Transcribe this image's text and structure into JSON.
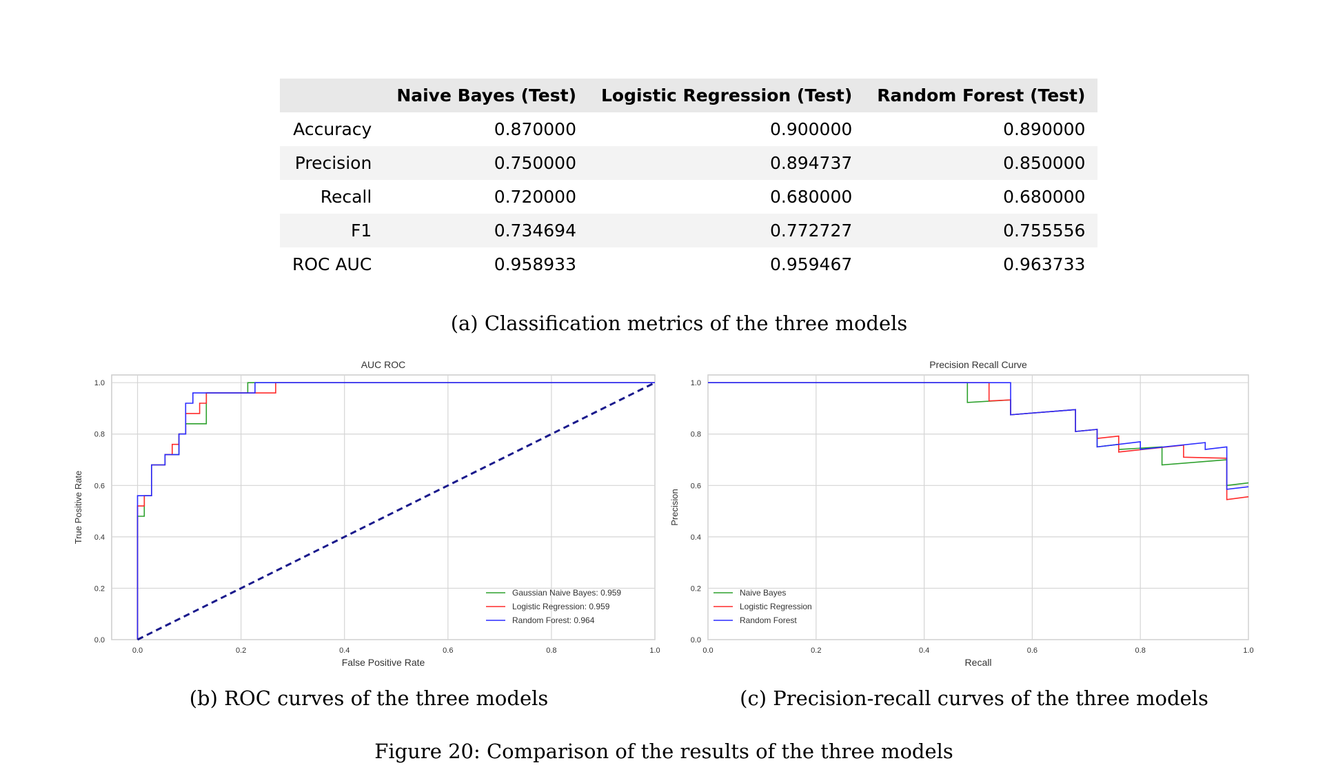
{
  "metrics_table": {
    "columns": [
      "",
      "Naive Bayes (Test)",
      "Logistic Regression (Test)",
      "Random Forest (Test)"
    ],
    "rows": [
      [
        "Accuracy",
        "0.870000",
        "0.900000",
        "0.890000"
      ],
      [
        "Precision",
        "0.750000",
        "0.894737",
        "0.850000"
      ],
      [
        "Recall",
        "0.720000",
        "0.680000",
        "0.680000"
      ],
      [
        "F1",
        "0.734694",
        "0.772727",
        "0.755556"
      ],
      [
        "ROC AUC",
        "0.958933",
        "0.959467",
        "0.963733"
      ]
    ]
  },
  "captions": {
    "a": "(a) Classification metrics of the three models",
    "b": "(b) ROC curves of the three models",
    "c": "(c) Precision-recall curves of the three models",
    "figure": "Figure 20: Comparison of the results of the three models"
  },
  "chart_data": [
    {
      "type": "line",
      "title": "AUC ROC",
      "xlabel": "False Positive Rate",
      "ylabel": "True Positive Rate",
      "xlim": [
        -0.05,
        1.0
      ],
      "ylim": [
        0.0,
        1.03
      ],
      "xticks": [
        "0.0",
        "0.2",
        "0.4",
        "0.6",
        "0.8",
        "1.0"
      ],
      "yticks": [
        "0.0",
        "0.2",
        "0.4",
        "0.6",
        "0.8",
        "1.0"
      ],
      "grid": true,
      "legend_position": "lower-right",
      "series": [
        {
          "name": "Gaussian Naive Bayes: 0.959",
          "color": "#2ca02c",
          "x": [
            0,
            0,
            0.013,
            0.013,
            0.027,
            0.027,
            0.053,
            0.053,
            0.08,
            0.08,
            0.093,
            0.093,
            0.133,
            0.133,
            0.213,
            0.213,
            1.0
          ],
          "y": [
            0,
            0.48,
            0.48,
            0.56,
            0.56,
            0.68,
            0.68,
            0.72,
            0.72,
            0.8,
            0.8,
            0.84,
            0.84,
            0.96,
            0.96,
            1.0,
            1.0
          ]
        },
        {
          "name": "Logistic Regression: 0.959",
          "color": "#ff2a2a",
          "x": [
            0,
            0,
            0.013,
            0.013,
            0.027,
            0.027,
            0.053,
            0.053,
            0.067,
            0.067,
            0.08,
            0.08,
            0.093,
            0.093,
            0.12,
            0.12,
            0.133,
            0.133,
            0.267,
            0.267,
            1.0
          ],
          "y": [
            0,
            0.52,
            0.52,
            0.56,
            0.56,
            0.68,
            0.68,
            0.72,
            0.72,
            0.76,
            0.76,
            0.8,
            0.8,
            0.88,
            0.88,
            0.92,
            0.92,
            0.96,
            0.96,
            1.0,
            1.0
          ]
        },
        {
          "name": "Random Forest: 0.964",
          "color": "#2a2aff",
          "x": [
            0,
            0,
            0.027,
            0.027,
            0.053,
            0.053,
            0.08,
            0.08,
            0.093,
            0.093,
            0.107,
            0.107,
            0.227,
            0.227,
            1.0
          ],
          "y": [
            0,
            0.56,
            0.56,
            0.68,
            0.68,
            0.72,
            0.72,
            0.8,
            0.8,
            0.92,
            0.92,
            0.96,
            0.96,
            1.0,
            1.0
          ]
        },
        {
          "name": "",
          "color": "#1a1a8c",
          "dashed": true,
          "x": [
            0,
            1
          ],
          "y": [
            0,
            1
          ]
        }
      ]
    },
    {
      "type": "line",
      "title": "Precision Recall Curve",
      "xlabel": "Recall",
      "ylabel": "Precision",
      "xlim": [
        0.0,
        1.0
      ],
      "ylim": [
        0.0,
        1.03
      ],
      "xticks": [
        "0.0",
        "0.2",
        "0.4",
        "0.6",
        "0.8",
        "1.0"
      ],
      "yticks": [
        "0.0",
        "0.2",
        "0.4",
        "0.6",
        "0.8",
        "1.0"
      ],
      "grid": true,
      "legend_position": "lower-left",
      "series": [
        {
          "name": "Naive Bayes",
          "color": "#2ca02c",
          "x": [
            0,
            0.48,
            0.48,
            0.56,
            0.56,
            0.68,
            0.68,
            0.72,
            0.72,
            0.76,
            0.76,
            0.84,
            0.84,
            0.96,
            0.96,
            1.0
          ],
          "y": [
            1.0,
            1.0,
            0.923,
            0.933,
            0.875,
            0.895,
            0.81,
            0.818,
            0.75,
            0.76,
            0.74,
            0.75,
            0.68,
            0.7,
            0.6,
            0.61
          ]
        },
        {
          "name": "Logistic Regression",
          "color": "#ff2a2a",
          "x": [
            0,
            0.52,
            0.52,
            0.56,
            0.56,
            0.68,
            0.68,
            0.72,
            0.72,
            0.76,
            0.76,
            0.88,
            0.88,
            0.96,
            0.96,
            1.0
          ],
          "y": [
            1.0,
            1.0,
            0.929,
            0.933,
            0.875,
            0.895,
            0.81,
            0.818,
            0.783,
            0.792,
            0.73,
            0.757,
            0.71,
            0.706,
            0.545,
            0.556
          ]
        },
        {
          "name": "Random Forest",
          "color": "#2a2aff",
          "x": [
            0,
            0.56,
            0.56,
            0.68,
            0.68,
            0.72,
            0.72,
            0.8,
            0.8,
            0.92,
            0.92,
            0.96,
            0.96,
            1.0
          ],
          "y": [
            1.0,
            1.0,
            0.875,
            0.895,
            0.81,
            0.818,
            0.75,
            0.77,
            0.74,
            0.767,
            0.74,
            0.75,
            0.585,
            0.595
          ]
        }
      ]
    }
  ]
}
